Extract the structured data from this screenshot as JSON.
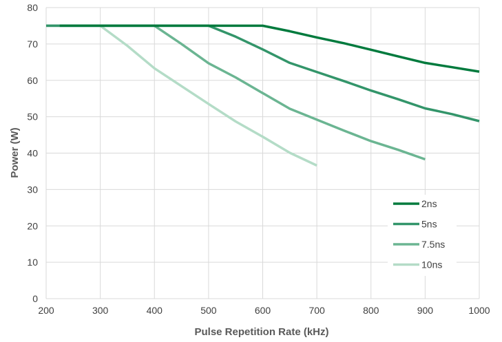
{
  "chart_data": {
    "type": "line",
    "title": "",
    "xlabel": "Pulse Repetition Rate (kHz)",
    "ylabel": "Power (W)",
    "xlim": [
      200,
      1000
    ],
    "ylim": [
      0,
      80
    ],
    "xticks": [
      200,
      300,
      400,
      500,
      600,
      700,
      800,
      900,
      1000
    ],
    "yticks": [
      0,
      10,
      20,
      30,
      40,
      50,
      60,
      70,
      80
    ],
    "grid": true,
    "legend_position": "bottom-right",
    "series": [
      {
        "name": "2ns",
        "color": "#007a3d",
        "x": [
          225,
          600,
          650,
          700,
          750,
          800,
          850,
          900,
          950,
          1000
        ],
        "y": [
          75,
          75,
          73.5,
          71.8,
          70.2,
          68.4,
          66.6,
          64.8,
          63.6,
          62.4
        ]
      },
      {
        "name": "5ns",
        "color": "#33956a",
        "x": [
          200,
          500,
          550,
          600,
          650,
          700,
          750,
          800,
          850,
          900,
          950,
          1000
        ],
        "y": [
          75,
          75,
          72,
          68.5,
          64.8,
          62.3,
          59.8,
          57.2,
          54.8,
          52.3,
          50.7,
          48.8
        ]
      },
      {
        "name": "7.5ns",
        "color": "#6bb592",
        "x": [
          200,
          400,
          450,
          500,
          550,
          600,
          650,
          700,
          750,
          800,
          850,
          900
        ],
        "y": [
          75,
          75,
          70,
          64.7,
          60.8,
          56.5,
          52.2,
          49.2,
          46.2,
          43.3,
          40.9,
          38.3
        ]
      },
      {
        "name": "10ns",
        "color": "#b4dcc7",
        "x": [
          200,
          300,
          350,
          400,
          450,
          500,
          550,
          600,
          650,
          700
        ],
        "y": [
          75,
          75,
          69.5,
          63.3,
          58.4,
          53.5,
          48.7,
          44.5,
          40.1,
          36.6
        ]
      }
    ]
  }
}
